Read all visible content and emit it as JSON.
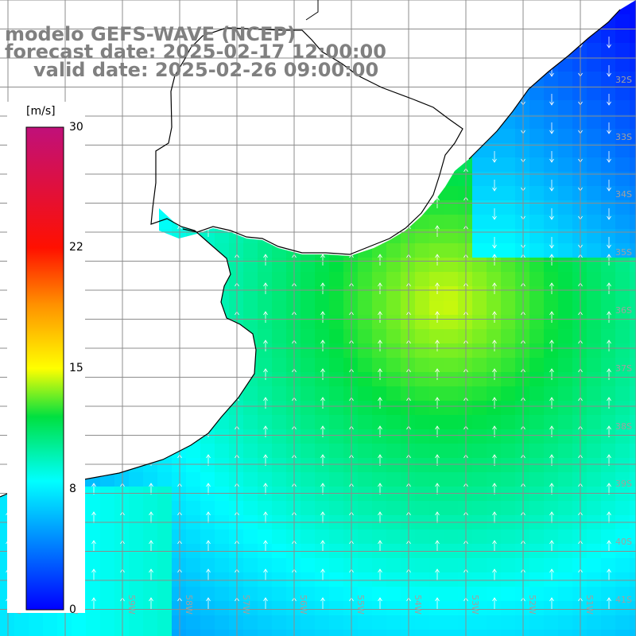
{
  "title": {
    "line1": "modelo GEFS-WAVE (NCEP)",
    "line2": "forecast date: 2025-02-17 12:00:00",
    "line3": "valid date: 2025-02-26 09:00:00"
  },
  "colorbar": {
    "unit": "[m/s]",
    "min": 0,
    "max": 30,
    "ticks": [
      "0",
      "8",
      "15",
      "22",
      "30"
    ]
  },
  "map": {
    "lat_labels": [
      "32S",
      "33S",
      "34S",
      "35S",
      "36S",
      "37S",
      "38S",
      "39S",
      "40S",
      "41S"
    ],
    "lon_labels": [
      "61W",
      "60W",
      "59W",
      "58W",
      "57W",
      "56W",
      "55W",
      "54W",
      "53W",
      "52W",
      "51W"
    ],
    "colors": {
      "grid": "#8c8c8c",
      "coast": "#000000",
      "arrows": "#ffffff",
      "title": "#808080"
    },
    "wind_field": "dominant northward (south-to-north) flow over the ocean; southward flow near the NE Uruguayan coast"
  }
}
